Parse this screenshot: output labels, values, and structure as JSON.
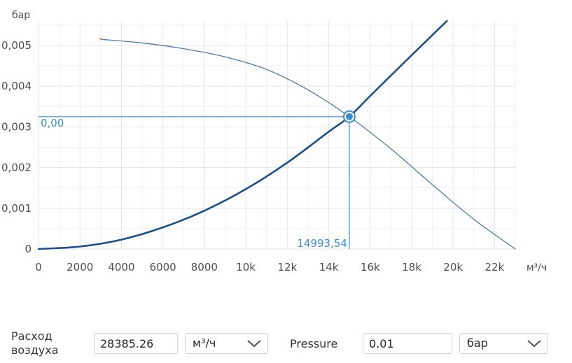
{
  "chart_data": {
    "type": "line",
    "ylabel": "бар",
    "xlabel": "м³/ч",
    "xlim": [
      0,
      23000
    ],
    "ylim": [
      0,
      0.0056
    ],
    "x_ticks": [
      0,
      2000,
      4000,
      6000,
      8000,
      10000,
      12000,
      14000,
      16000,
      18000,
      20000,
      22000
    ],
    "x_tick_labels": [
      "0",
      "2000",
      "4000",
      "6000",
      "8000",
      "10k",
      "12k",
      "14k",
      "16k",
      "18k",
      "20k",
      "22k"
    ],
    "y_ticks": [
      0,
      0.001,
      0.002,
      0.003,
      0.004,
      0.005
    ],
    "y_tick_labels": [
      "0",
      "0,001",
      "0,002",
      "0,003",
      "0,004",
      "0,005"
    ],
    "grid": true,
    "series": [
      {
        "color": "#1b4f8a",
        "x": [
          0,
          2000,
          4000,
          6000,
          8000,
          10000,
          12000,
          14000,
          14993.54,
          16000,
          18000,
          19700
        ],
        "y": [
          0,
          6e-05,
          0.00023,
          0.00053,
          0.00094,
          0.00147,
          0.00212,
          0.00288,
          0.00325,
          0.00376,
          0.00476,
          0.0056
        ]
      },
      {
        "color": "#4a78a8",
        "x": [
          3000,
          5000,
          7000,
          9000,
          11000,
          13000,
          14993.54,
          17000,
          19000,
          21000,
          23000
        ],
        "y": [
          0.00515,
          0.00506,
          0.00492,
          0.00472,
          0.00441,
          0.00391,
          0.00325,
          0.00246,
          0.00158,
          0.00073,
          0
        ]
      }
    ],
    "operating_point": {
      "x": 14993.54,
      "y": 0.00325,
      "x_label": "14993,54",
      "y_label": "0,00"
    },
    "marker_color": "#3a8fd0"
  },
  "controls": {
    "flow_label": "Расход воздуха",
    "flow_value": "28385.26",
    "flow_unit": "м³/ч",
    "pressure_label": "Pressure",
    "pressure_value": "0.01",
    "pressure_unit": "бар",
    "chevron_icon": "chevron-down-icon"
  }
}
